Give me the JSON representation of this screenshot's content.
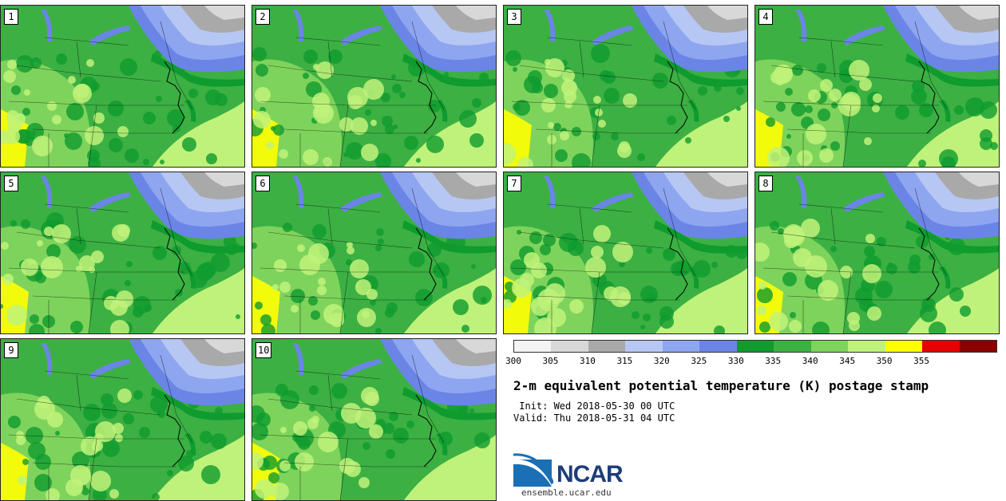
{
  "panels": [
    {
      "label": "1"
    },
    {
      "label": "2"
    },
    {
      "label": "3"
    },
    {
      "label": "4"
    },
    {
      "label": "5"
    },
    {
      "label": "6"
    },
    {
      "label": "7"
    },
    {
      "label": "8"
    },
    {
      "label": "9"
    },
    {
      "label": "10"
    }
  ],
  "colorbar": {
    "colors": [
      "#f4f4f4",
      "#d8d8d8",
      "#a9a9a9",
      "#b7c7f4",
      "#8ea5f0",
      "#6b85e6",
      "#0f9b2e",
      "#3cb043",
      "#7ed35c",
      "#bff27a",
      "#ffff00",
      "#e60000",
      "#8b0000"
    ],
    "ticks": [
      "300",
      "305",
      "310",
      "315",
      "320",
      "325",
      "330",
      "335",
      "340",
      "345",
      "350",
      "355"
    ]
  },
  "title": "2-m equivalent potential temperature (K) postage stamp",
  "init": " Init: Wed 2018-05-30 00 UTC",
  "valid": "Valid: Thu 2018-05-31 04 UTC",
  "logo": {
    "text": "NCAR",
    "url": "ensemble.ucar.edu"
  }
}
